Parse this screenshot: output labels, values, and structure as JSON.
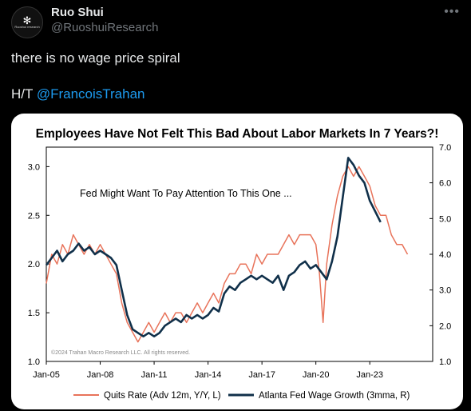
{
  "author": {
    "name": "Ruo Shui",
    "handle": "@RuoshuiResearch",
    "avatar_text": "Ruoshui research"
  },
  "tweet": {
    "line1": "there is no wage price spiral",
    "ht_prefix": "H/T ",
    "mention": "@FrancoisTrahan"
  },
  "icons": {
    "more": "more-horizontal-icon"
  },
  "chart_data": {
    "type": "line",
    "title": "Employees Have Not Felt This Bad About Labor Markets In 7 Years?!",
    "annotation": "Fed Might Want To Pay Attention To This One ...",
    "copyright": "©2024 Trahan Macro Research LLC. All rights reserved.",
    "x_ticks": [
      "Jan-05",
      "Jan-08",
      "Jan-11",
      "Jan-14",
      "Jan-17",
      "Jan-20",
      "Jan-23"
    ],
    "x_range": [
      2005.0,
      2026.5
    ],
    "y_left": {
      "ticks": [
        "1.0",
        "1.5",
        "2.0",
        "2.5",
        "3.0"
      ],
      "range": [
        1.0,
        3.2
      ]
    },
    "y_right": {
      "ticks": [
        "1.0",
        "2.0",
        "3.0",
        "4.0",
        "5.0",
        "6.0",
        "7.0"
      ],
      "range": [
        1.0,
        7.0
      ]
    },
    "grid": false,
    "legend_position": "bottom",
    "series": [
      {
        "name": "Quits Rate (Adv 12m, Y/Y, L)",
        "axis": "left",
        "color": "#e8735a",
        "x": [
          2005.0,
          2005.3,
          2005.6,
          2005.9,
          2006.2,
          2006.5,
          2006.8,
          2007.1,
          2007.4,
          2007.7,
          2008.0,
          2008.3,
          2008.6,
          2008.9,
          2009.2,
          2009.5,
          2009.8,
          2010.1,
          2010.4,
          2010.7,
          2011.0,
          2011.3,
          2011.6,
          2011.9,
          2012.2,
          2012.5,
          2012.8,
          2013.1,
          2013.4,
          2013.7,
          2014.0,
          2014.3,
          2014.6,
          2014.9,
          2015.2,
          2015.5,
          2015.8,
          2016.1,
          2016.4,
          2016.7,
          2017.0,
          2017.3,
          2017.6,
          2017.9,
          2018.2,
          2018.5,
          2018.8,
          2019.1,
          2019.4,
          2019.7,
          2020.0,
          2020.2,
          2020.4,
          2020.6,
          2020.9,
          2021.2,
          2021.5,
          2021.8,
          2022.1,
          2022.4,
          2022.7,
          2023.0,
          2023.3,
          2023.6,
          2023.9,
          2024.2,
          2024.5,
          2024.8,
          2025.1
        ],
        "values": [
          1.8,
          2.1,
          2.0,
          2.2,
          2.1,
          2.3,
          2.2,
          2.1,
          2.2,
          2.1,
          2.2,
          2.1,
          2.0,
          1.9,
          1.6,
          1.4,
          1.3,
          1.2,
          1.3,
          1.4,
          1.3,
          1.4,
          1.5,
          1.4,
          1.5,
          1.5,
          1.4,
          1.5,
          1.6,
          1.5,
          1.6,
          1.7,
          1.6,
          1.8,
          1.9,
          1.9,
          2.0,
          2.0,
          1.9,
          2.1,
          2.0,
          2.1,
          2.1,
          2.1,
          2.2,
          2.3,
          2.2,
          2.3,
          2.3,
          2.3,
          2.2,
          1.9,
          1.4,
          2.0,
          2.4,
          2.7,
          2.9,
          3.0,
          2.9,
          3.0,
          2.9,
          2.8,
          2.6,
          2.5,
          2.5,
          2.3,
          2.2,
          2.2,
          2.1
        ]
      },
      {
        "name": "Atlanta Fed Wage Growth (3mma, R)",
        "axis": "right",
        "color": "#10304a",
        "x": [
          2005.0,
          2005.3,
          2005.6,
          2005.9,
          2006.2,
          2006.5,
          2006.8,
          2007.1,
          2007.4,
          2007.7,
          2008.0,
          2008.3,
          2008.6,
          2008.9,
          2009.2,
          2009.5,
          2009.8,
          2010.1,
          2010.4,
          2010.7,
          2011.0,
          2011.3,
          2011.6,
          2011.9,
          2012.2,
          2012.5,
          2012.8,
          2013.1,
          2013.4,
          2013.7,
          2014.0,
          2014.3,
          2014.6,
          2014.9,
          2015.2,
          2015.5,
          2015.8,
          2016.1,
          2016.4,
          2016.7,
          2017.0,
          2017.3,
          2017.6,
          2017.9,
          2018.2,
          2018.5,
          2018.8,
          2019.1,
          2019.4,
          2019.7,
          2020.0,
          2020.3,
          2020.6,
          2020.9,
          2021.2,
          2021.5,
          2021.8,
          2022.1,
          2022.4,
          2022.7,
          2023.0,
          2023.3,
          2023.6
        ],
        "values": [
          3.7,
          3.9,
          4.1,
          3.8,
          4.0,
          4.1,
          4.3,
          4.1,
          4.2,
          4.0,
          4.1,
          4.0,
          3.9,
          3.7,
          3.0,
          2.3,
          1.9,
          1.8,
          1.7,
          1.8,
          1.7,
          1.8,
          2.0,
          2.1,
          2.2,
          2.1,
          2.3,
          2.2,
          2.3,
          2.2,
          2.3,
          2.5,
          2.4,
          2.9,
          3.1,
          3.0,
          3.2,
          3.3,
          3.4,
          3.3,
          3.4,
          3.3,
          3.2,
          3.4,
          3.0,
          3.4,
          3.5,
          3.7,
          3.8,
          3.6,
          3.7,
          3.5,
          3.3,
          3.8,
          4.5,
          5.6,
          6.7,
          6.5,
          6.2,
          6.0,
          5.5,
          5.2,
          4.9
        ]
      }
    ]
  }
}
